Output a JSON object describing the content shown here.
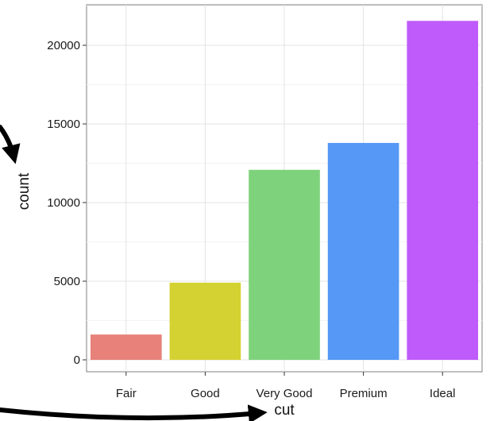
{
  "chart_data": {
    "type": "bar",
    "categories": [
      "Fair",
      "Good",
      "Very Good",
      "Premium",
      "Ideal"
    ],
    "values": [
      1610,
      4906,
      12082,
      13791,
      21551
    ],
    "colors": [
      "#E7817A",
      "#D3D232",
      "#7FD27C",
      "#5598F6",
      "#BE5BFA"
    ],
    "xlabel": "cut",
    "ylabel": "count",
    "ylim": [
      0,
      22600
    ],
    "yticks": [
      0,
      5000,
      10000,
      15000,
      20000
    ],
    "ytick_labels": [
      "0",
      "5000",
      "10000",
      "15000",
      "20000"
    ],
    "grid": true,
    "legend": "none"
  }
}
